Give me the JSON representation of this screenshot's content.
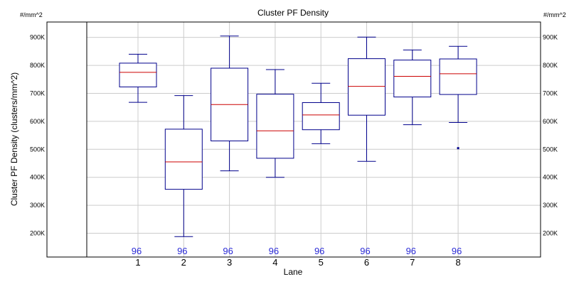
{
  "chart_data": {
    "type": "box",
    "title": "Cluster PF Density",
    "xlabel": "Lane",
    "ylabel": "Cluster PF Density (clusters/mm^2)",
    "y_unit_left": "#/mm^2",
    "y_unit_right": "#/mm^2",
    "ylim": [
      115000,
      955000
    ],
    "yticks": [
      {
        "value": 200000,
        "label": "200K"
      },
      {
        "value": 300000,
        "label": "300K"
      },
      {
        "value": 400000,
        "label": "400K"
      },
      {
        "value": 500000,
        "label": "500K"
      },
      {
        "value": 600000,
        "label": "600K"
      },
      {
        "value": 700000,
        "label": "700K"
      },
      {
        "value": 800000,
        "label": "800K"
      },
      {
        "value": 900000,
        "label": "900K"
      }
    ],
    "grid": true,
    "colors": {
      "box": "#00008b",
      "median": "#cc0000",
      "grid": "#cccccc",
      "count": "#2a2ad6"
    },
    "lanes": [
      {
        "label": "1",
        "count": "96",
        "min": 668000,
        "q1": 723000,
        "median": 775000,
        "q3": 808000,
        "max": 840000,
        "outliers": []
      },
      {
        "label": "2",
        "count": "96",
        "min": 188000,
        "q1": 357000,
        "median": 455000,
        "q3": 572000,
        "max": 692000,
        "outliers": []
      },
      {
        "label": "3",
        "count": "96",
        "min": 423000,
        "q1": 530000,
        "median": 660000,
        "q3": 790000,
        "max": 905000,
        "outliers": []
      },
      {
        "label": "4",
        "count": "96",
        "min": 400000,
        "q1": 468000,
        "median": 566000,
        "q3": 697000,
        "max": 785000,
        "outliers": []
      },
      {
        "label": "5",
        "count": "96",
        "min": 520000,
        "q1": 570000,
        "median": 623000,
        "q3": 667000,
        "max": 736000,
        "outliers": []
      },
      {
        "label": "6",
        "count": "96",
        "min": 457000,
        "q1": 622000,
        "median": 725000,
        "q3": 824000,
        "max": 901000,
        "outliers": []
      },
      {
        "label": "7",
        "count": "96",
        "min": 588000,
        "q1": 687000,
        "median": 761000,
        "q3": 819000,
        "max": 855000,
        "outliers": []
      },
      {
        "label": "8",
        "count": "96",
        "min": 596000,
        "q1": 696000,
        "median": 770000,
        "q3": 823000,
        "max": 868000,
        "outliers": [
          504000
        ]
      }
    ]
  }
}
